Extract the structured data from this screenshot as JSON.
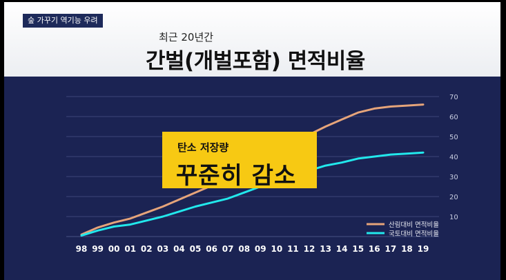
{
  "tag": "숲 가꾸기 역기능 우려",
  "subtitle": "최근 20년간",
  "title": "간벌(개벌포함) 면적비율",
  "callout": {
    "line1": "탄소 저장량",
    "line2": "꾸준히 감소"
  },
  "chart_data": {
    "type": "line",
    "categories": [
      "98",
      "99",
      "00",
      "01",
      "02",
      "03",
      "04",
      "05",
      "06",
      "07",
      "08",
      "09",
      "10",
      "11",
      "12",
      "13",
      "14",
      "15",
      "16",
      "17",
      "18",
      "19"
    ],
    "ylim": [
      0,
      70
    ],
    "yticks": [
      10,
      20,
      30,
      40,
      50,
      60,
      70
    ],
    "grid": true,
    "legend_position": "bottom-right",
    "series": [
      {
        "name": "산림대비 면적비율",
        "color": "#e6a47a",
        "values": [
          1,
          4.5,
          7,
          9,
          12,
          15,
          18.5,
          22,
          25.5,
          29,
          32.5,
          37,
          42,
          46.5,
          51,
          55,
          58.5,
          62,
          64,
          65,
          65.5,
          66
        ]
      },
      {
        "name": "국토대비 면적비율",
        "color": "#22e8ec",
        "values": [
          0.5,
          3,
          5,
          6,
          8,
          10,
          12.5,
          15,
          17,
          19,
          22,
          25,
          28,
          31,
          33,
          35.5,
          37,
          39,
          40,
          41,
          41.5,
          42
        ]
      }
    ]
  }
}
